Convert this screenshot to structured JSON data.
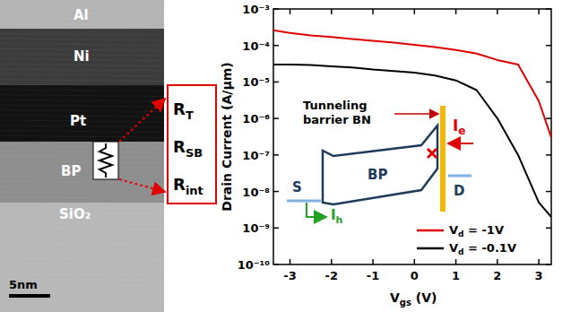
{
  "image": {
    "layers": [
      "Al",
      "Ni",
      "Pt",
      "BP",
      "SiO₂"
    ],
    "scale_bar": "5nm",
    "resistances": [
      "RT",
      "RSB",
      "Rint"
    ]
  },
  "chart_data": {
    "type": "line",
    "xlabel": "Vgs (V)",
    "ylabel": "Drain Current (A/μm)",
    "log": "y",
    "xlim": [
      -3.4,
      3.3
    ],
    "ylim": [
      1e-10,
      0.001
    ],
    "xticks": [
      -3,
      -2,
      -1,
      0,
      1,
      2,
      3
    ],
    "yticks": [
      {
        "value": 1e-10,
        "label": "10⁻¹⁰"
      },
      {
        "value": 1e-09,
        "label": "10⁻⁹"
      },
      {
        "value": 1e-08,
        "label": "10⁻⁸"
      },
      {
        "value": 1e-07,
        "label": "10⁻⁷"
      },
      {
        "value": 1e-06,
        "label": "10⁻⁶"
      },
      {
        "value": 1e-05,
        "label": "10⁻⁵"
      },
      {
        "value": 0.0001,
        "label": "10⁻⁴"
      },
      {
        "value": 0.001,
        "label": "10⁻³"
      }
    ],
    "legend": "lower right",
    "x": [
      -3.4,
      -3,
      -2.5,
      -2,
      -1.5,
      -1,
      -0.5,
      0,
      0.5,
      1,
      1.5,
      2,
      2.5,
      3,
      3.3
    ],
    "series": [
      {
        "name": "Vd = -1V",
        "color": "#e00000",
        "values": [
          0.00026,
          0.00022,
          0.00019,
          0.00017,
          0.00015,
          0.000135,
          0.00012,
          0.000105,
          9e-05,
          7.5e-05,
          6e-05,
          4e-05,
          3e-05,
          3e-06,
          3e-07
        ]
      },
      {
        "name": "Vd = -0.1V",
        "color": "#000000",
        "values": [
          3e-05,
          3e-05,
          2.9e-05,
          2.7e-05,
          2.5e-05,
          2.2e-05,
          2e-05,
          1.8e-05,
          1.5e-05,
          1.1e-05,
          6e-06,
          1e-06,
          1e-07,
          5e-09,
          2e-09
        ]
      }
    ],
    "annotations": {
      "barrier": "Tunneling barrier BN",
      "source": "S",
      "drain": "D",
      "channel": "BP",
      "electron_current": "Ie",
      "hole_current": "Ih"
    }
  }
}
